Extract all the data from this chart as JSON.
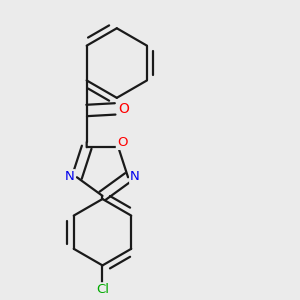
{
  "bg_color": "#ebebeb",
  "bond_color": "#1a1a1a",
  "bond_width": 1.6,
  "atom_colors": {
    "O": "#ff0000",
    "N": "#0000ee",
    "Cl": "#00aa00",
    "C": "#1a1a1a"
  },
  "font_size": 9.5
}
